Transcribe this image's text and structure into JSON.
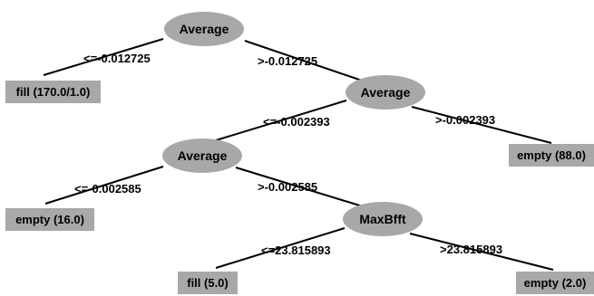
{
  "diagram": {
    "nodes": [
      {
        "id": "n1",
        "label": "Average"
      },
      {
        "id": "n2",
        "label": "Average"
      },
      {
        "id": "n3",
        "label": "Average"
      },
      {
        "id": "n4",
        "label": "MaxBfft"
      }
    ],
    "leaves": [
      {
        "id": "l1",
        "label": "fill (170.0/1.0)"
      },
      {
        "id": "l2",
        "label": "empty (88.0)"
      },
      {
        "id": "l3",
        "label": "empty (16.0)"
      },
      {
        "id": "l4",
        "label": "fill (5.0)"
      },
      {
        "id": "l5",
        "label": "empty (2.0)"
      }
    ],
    "edges": [
      {
        "from": "n1",
        "to": "l1",
        "label": "<=-0.012725"
      },
      {
        "from": "n1",
        "to": "n2",
        "label": ">-0.012725"
      },
      {
        "from": "n2",
        "to": "n3",
        "label": "<=-0.002393"
      },
      {
        "from": "n2",
        "to": "l2",
        "label": ">-0.002393"
      },
      {
        "from": "n3",
        "to": "l3",
        "label": "<=-0.002585"
      },
      {
        "from": "n3",
        "to": "n4",
        "label": ">-0.002585"
      },
      {
        "from": "n4",
        "to": "l4",
        "label": "<=23.815893"
      },
      {
        "from": "n4",
        "to": "l5",
        "label": ">23.815893"
      }
    ]
  },
  "colors": {
    "node_fill": "#a8a8a8",
    "line": "#000000",
    "text": "#000000",
    "background": "#ffffff"
  }
}
